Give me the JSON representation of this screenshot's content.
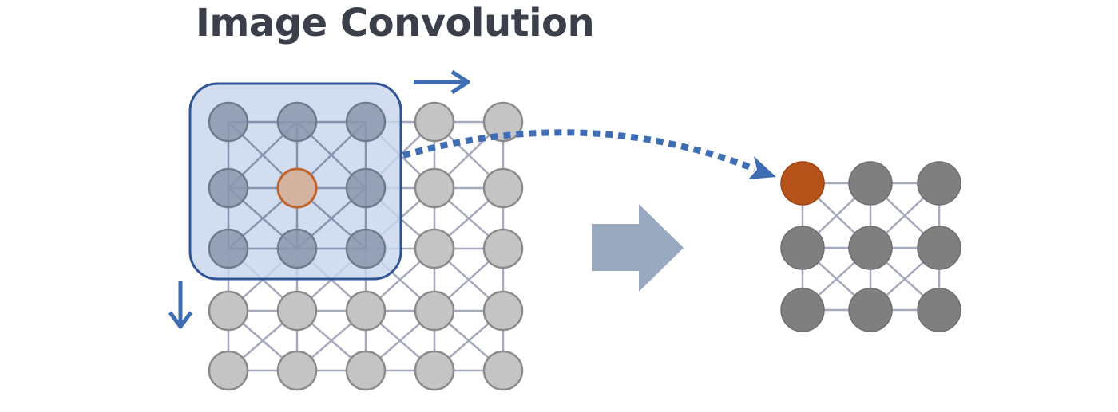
{
  "title": "Image Convolution",
  "input_grid": {
    "rows": 5,
    "cols": 5
  },
  "kernel": {
    "rows": 3,
    "cols": 3,
    "center_row": 1,
    "center_col": 1
  },
  "output_grid": {
    "rows": 3,
    "cols": 3,
    "highlight_row": 0,
    "highlight_col": 0
  },
  "colors": {
    "input_node": "#c4c4c4",
    "input_stroke": "#8a8a8a",
    "grid_edge": "#a4a9bb",
    "kernel_fill": "#c8d5ec",
    "kernel_stroke": "#2f5597",
    "kernel_node": "#8a97ad",
    "center_node": "#d4b3a0",
    "center_stroke": "#c0622b",
    "output_node": "#7f7f7f",
    "output_highlight": "#b5531b",
    "arrow_blue": "#3f6db4",
    "big_arrow": "#98a9c0"
  },
  "icons": {
    "slide_right": "arrow-right-icon",
    "slide_down": "arrow-down-icon",
    "transform": "big-right-arrow-icon",
    "mapping": "dotted-curved-arrow"
  }
}
